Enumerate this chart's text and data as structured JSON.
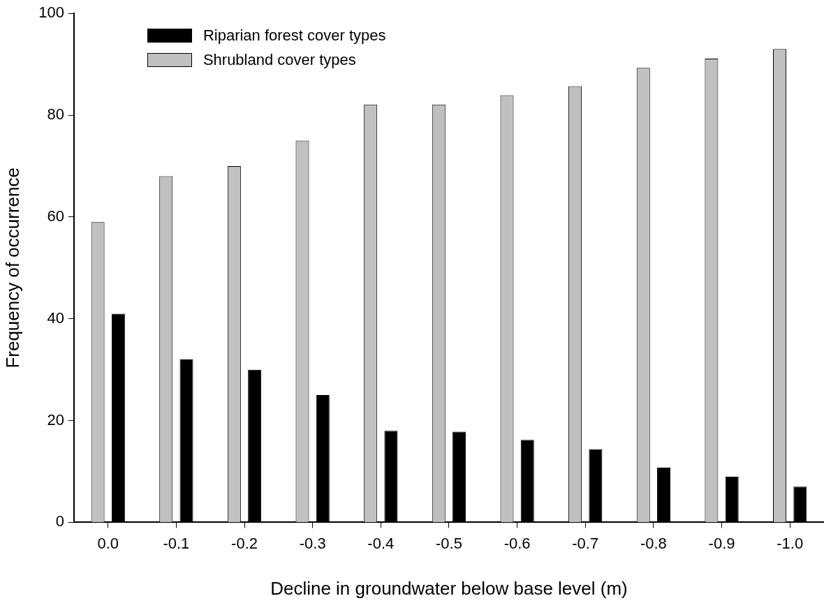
{
  "chart_data": {
    "type": "bar",
    "xlabel": "Decline in groundwater below base level (m)",
    "ylabel": "Frequency of occurrence",
    "categories": [
      "0.0",
      "-0.1",
      "-0.2",
      "-0.3",
      "-0.4",
      "-0.5",
      "-0.6",
      "-0.7",
      "-0.8",
      "-0.9",
      "-1.0"
    ],
    "series": [
      {
        "name": "Shrubland cover types",
        "color": "#c0c0c0",
        "values": [
          59.0,
          68.0,
          70.0,
          75.0,
          82.1,
          82.1,
          83.9,
          85.7,
          89.3,
          91.1,
          93.0
        ]
      },
      {
        "name": "Riparian forest cover types",
        "color": "#000000",
        "values": [
          41.0,
          32.0,
          30.0,
          25.0,
          18.0,
          17.8,
          16.2,
          14.4,
          10.8,
          9.0,
          7.0
        ]
      }
    ],
    "ylim": [
      0,
      100
    ],
    "yticks": [
      0,
      20,
      40,
      60,
      80,
      100
    ],
    "grid": false,
    "legend": "top left"
  }
}
